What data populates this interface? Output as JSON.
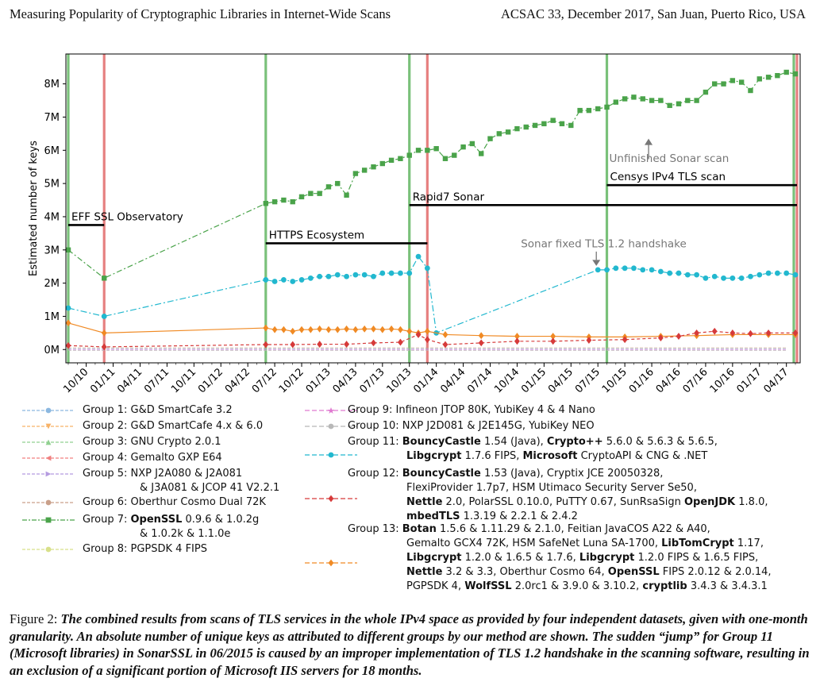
{
  "header": {
    "left": "Measuring Popularity of Cryptographic Libraries in Internet-Wide Scans",
    "right": "ACSAC 33, December 2017, San Juan, Puerto Rico, USA"
  },
  "chart_data": {
    "type": "line",
    "ylabel": "Estimated number of keys",
    "xlabel": "",
    "yticks": [
      "0M",
      "1M",
      "2M",
      "3M",
      "4M",
      "5M",
      "6M",
      "7M",
      "8M"
    ],
    "ylim": [
      -0.4,
      8.9
    ],
    "xticks": [
      "10/10",
      "01/11",
      "04/11",
      "07/11",
      "10/11",
      "01/12",
      "04/12",
      "07/12",
      "10/12",
      "01/13",
      "04/13",
      "07/13",
      "10/13",
      "01/14",
      "04/14",
      "07/14",
      "10/14",
      "01/15",
      "04/15",
      "07/15",
      "10/15",
      "01/16",
      "04/16",
      "07/16",
      "10/16",
      "01/17",
      "04/17"
    ],
    "grid": false,
    "vertical_lines": [
      {
        "x": "2010-08",
        "color": "#59b159"
      },
      {
        "x": "2010-12",
        "color": "#e06060"
      },
      {
        "x": "2012-06",
        "color": "#59b159"
      },
      {
        "x": "2013-10",
        "color": "#59b159"
      },
      {
        "x": "2013-12",
        "color": "#e06060"
      },
      {
        "x": "2015-08",
        "color": "#59b159"
      },
      {
        "x": "2017-05",
        "color": "#59b159"
      },
      {
        "x": "2017-05",
        "color": "#e06060"
      }
    ],
    "datasets": [
      {
        "label": "EFF SSL Observatory",
        "from": "2010-08",
        "to": "2010-12",
        "y": 3.75
      },
      {
        "label": "HTTPS Ecosystem",
        "from": "2012-06",
        "to": "2013-12",
        "y": 3.2
      },
      {
        "label": "Rapid7 Sonar",
        "from": "2013-10",
        "to": "2017-05",
        "y": 4.35
      },
      {
        "label": "Censys IPv4 TLS scan",
        "from": "2015-08",
        "to": "2017-05",
        "y": 4.95
      }
    ],
    "annotations": [
      {
        "text": "Unfinished Sonar scan",
        "x": "2016-01",
        "y": 6.4
      },
      {
        "text": "Sonar fixed TLS 1.2 handshake",
        "x": "2015-07",
        "y": 2.45
      }
    ],
    "series": [
      {
        "name": "Group 7",
        "color": "#4aa34a",
        "marker": "square",
        "x": [
          "2010-08",
          "2010-12",
          "2012-06",
          "2012-07",
          "2012-08",
          "2012-09",
          "2012-10",
          "2012-11",
          "2012-12",
          "2013-01",
          "2013-02",
          "2013-03",
          "2013-04",
          "2013-05",
          "2013-06",
          "2013-07",
          "2013-08",
          "2013-09",
          "2013-10",
          "2013-11",
          "2013-12",
          "2014-01",
          "2014-02",
          "2014-03",
          "2014-04",
          "2014-05",
          "2014-06",
          "2014-07",
          "2014-08",
          "2014-09",
          "2014-10",
          "2014-11",
          "2014-12",
          "2015-01",
          "2015-02",
          "2015-03",
          "2015-04",
          "2015-05",
          "2015-06",
          "2015-07",
          "2015-08",
          "2015-09",
          "2015-10",
          "2015-11",
          "2015-12",
          "2016-01",
          "2016-02",
          "2016-03",
          "2016-04",
          "2016-05",
          "2016-06",
          "2016-07",
          "2016-08",
          "2016-09",
          "2016-10",
          "2016-11",
          "2016-12",
          "2017-01",
          "2017-02",
          "2017-03",
          "2017-04",
          "2017-05"
        ],
        "values": [
          3.0,
          2.15,
          4.4,
          4.45,
          4.5,
          4.45,
          4.6,
          4.7,
          4.7,
          4.9,
          5.0,
          4.65,
          5.3,
          5.4,
          5.5,
          5.6,
          5.7,
          5.75,
          5.85,
          6.0,
          6.0,
          6.05,
          5.75,
          5.85,
          6.1,
          6.2,
          5.9,
          6.35,
          6.5,
          6.55,
          6.65,
          6.7,
          6.75,
          6.8,
          6.9,
          6.8,
          6.75,
          7.2,
          7.2,
          7.25,
          7.3,
          7.45,
          7.55,
          7.6,
          7.55,
          7.5,
          7.5,
          7.35,
          7.4,
          7.5,
          7.5,
          7.75,
          8.0,
          8.0,
          8.1,
          8.05,
          7.8,
          8.15,
          8.2,
          8.25,
          8.35,
          8.3
        ]
      },
      {
        "name": "Group 11",
        "color": "#22b8cf",
        "marker": "circle",
        "x": [
          "2010-08",
          "2010-12",
          "2012-06",
          "2012-07",
          "2012-08",
          "2012-09",
          "2012-10",
          "2012-11",
          "2012-12",
          "2013-01",
          "2013-02",
          "2013-03",
          "2013-04",
          "2013-05",
          "2013-06",
          "2013-07",
          "2013-08",
          "2013-09",
          "2013-10",
          "2013-11",
          "2013-12",
          "2014-01",
          "2015-07",
          "2015-08",
          "2015-09",
          "2015-10",
          "2015-11",
          "2015-12",
          "2016-01",
          "2016-02",
          "2016-03",
          "2016-04",
          "2016-05",
          "2016-06",
          "2016-07",
          "2016-08",
          "2016-09",
          "2016-10",
          "2016-11",
          "2016-12",
          "2017-01",
          "2017-02",
          "2017-03",
          "2017-04",
          "2017-05"
        ],
        "values": [
          1.25,
          1.0,
          2.1,
          2.05,
          2.1,
          2.05,
          2.1,
          2.15,
          2.2,
          2.2,
          2.25,
          2.2,
          2.25,
          2.25,
          2.2,
          2.3,
          2.3,
          2.3,
          2.3,
          2.8,
          2.45,
          0.5,
          2.4,
          2.4,
          2.45,
          2.45,
          2.45,
          2.4,
          2.4,
          2.35,
          2.3,
          2.3,
          2.25,
          2.25,
          2.15,
          2.2,
          2.15,
          2.15,
          2.15,
          2.2,
          2.25,
          2.3,
          2.3,
          2.3,
          2.25
        ]
      },
      {
        "name": "Group 13",
        "color": "#f08a24",
        "marker": "diamond",
        "x": [
          "2010-08",
          "2010-12",
          "2012-06",
          "2012-07",
          "2012-08",
          "2012-09",
          "2012-10",
          "2012-11",
          "2012-12",
          "2013-01",
          "2013-02",
          "2013-03",
          "2013-04",
          "2013-05",
          "2013-06",
          "2013-07",
          "2013-08",
          "2013-09",
          "2013-10",
          "2013-11",
          "2013-12",
          "2014-02",
          "2014-06",
          "2014-10",
          "2015-02",
          "2015-06",
          "2015-10",
          "2016-02",
          "2016-06",
          "2016-10",
          "2017-02",
          "2017-05"
        ],
        "values": [
          0.8,
          0.5,
          0.65,
          0.6,
          0.6,
          0.55,
          0.6,
          0.6,
          0.62,
          0.6,
          0.6,
          0.62,
          0.6,
          0.62,
          0.62,
          0.6,
          0.62,
          0.6,
          0.55,
          0.5,
          0.55,
          0.45,
          0.42,
          0.4,
          0.4,
          0.38,
          0.38,
          0.4,
          0.42,
          0.45,
          0.45,
          0.45
        ]
      },
      {
        "name": "Group 12",
        "color": "#d63a3a",
        "marker": "diamond",
        "x": [
          "2010-08",
          "2010-12",
          "2012-06",
          "2012-09",
          "2012-12",
          "2013-03",
          "2013-06",
          "2013-09",
          "2013-11",
          "2013-12",
          "2014-02",
          "2014-06",
          "2014-10",
          "2015-02",
          "2015-06",
          "2015-10",
          "2016-02",
          "2016-04",
          "2016-06",
          "2016-08",
          "2016-10",
          "2016-12",
          "2017-02",
          "2017-05"
        ],
        "values": [
          0.12,
          0.08,
          0.15,
          0.15,
          0.16,
          0.16,
          0.2,
          0.22,
          0.45,
          0.3,
          0.15,
          0.2,
          0.25,
          0.25,
          0.28,
          0.3,
          0.35,
          0.4,
          0.5,
          0.55,
          0.5,
          0.48,
          0.5,
          0.5
        ]
      }
    ]
  },
  "legend": {
    "left": [
      {
        "prefix": "Group  1:",
        "parts": [
          {
            "t": "G&D SmartCafe 3.2",
            "b": false
          }
        ],
        "color": "#8cb8e0",
        "marker": "circle",
        "dash": "4,2"
      },
      {
        "prefix": "Group  2:",
        "parts": [
          {
            "t": "G&D SmartCafe 4.x & 6.0",
            "b": false
          }
        ],
        "color": "#f7b267",
        "marker": "tri-down",
        "dash": "4,2"
      },
      {
        "prefix": "Group  3:",
        "parts": [
          {
            "t": "GNU Crypto 2.0.1",
            "b": false
          }
        ],
        "color": "#90d090",
        "marker": "tri-up",
        "dash": "4,2"
      },
      {
        "prefix": "Group  4:",
        "parts": [
          {
            "t": "Gemalto GXP E64",
            "b": false
          }
        ],
        "color": "#f08080",
        "marker": "tri-left",
        "dash": "4,2"
      },
      {
        "prefix": "Group  5:",
        "parts": [
          {
            "t": "NXP J2A080 & J2A081",
            "b": false
          }
        ],
        "line2": "& J3A081 & JCOP 41 V2.2.1",
        "color": "#b59be0",
        "marker": "tri-right",
        "dash": "4,2"
      },
      {
        "prefix": "Group  6:",
        "parts": [
          {
            "t": "Oberthur Cosmo Dual 72K",
            "b": false
          }
        ],
        "color": "#c9a08a",
        "marker": "circle",
        "dash": "4,2"
      },
      {
        "prefix": "Group  7:",
        "parts": [
          {
            "t": "OpenSSL",
            "b": true
          },
          {
            "t": " 0.9.6 & 1.0.2g",
            "b": false
          }
        ],
        "line2": "& 1.0.2k & 1.1.0e",
        "color": "#4aa34a",
        "marker": "square",
        "dash": "6,2,2,2"
      },
      {
        "prefix": "Group  8:",
        "parts": [
          {
            "t": "PGPSDK 4 FIPS",
            "b": false
          }
        ],
        "color": "#d8e08a",
        "marker": "circle",
        "dash": "4,2"
      }
    ],
    "right": [
      {
        "prefix": "Group  9:",
        "lines": [
          [
            {
              "t": "Infineon JTOP 80K, YubiKey 4 & 4 Nano",
              "b": false
            }
          ]
        ],
        "color": "#e07ad0",
        "marker": "star"
      },
      {
        "prefix": "Group 10:",
        "lines": [
          [
            {
              "t": "NXP J2D081 & J2E145G, YubiKey NEO",
              "b": false
            }
          ]
        ],
        "color": "#b8b8b8",
        "marker": "circle"
      },
      {
        "prefix": "Group 11:",
        "lines": [
          [
            {
              "t": "BouncyCastle",
              "b": true
            },
            {
              "t": " 1.54 (Java), ",
              "b": false
            },
            {
              "t": "Crypto++",
              "b": true
            },
            {
              "t": " 5.6.0 & 5.6.3 & 5.6.5,",
              "b": false
            }
          ],
          [
            {
              "t": "Libgcrypt",
              "b": true
            },
            {
              "t": " 1.7.6 FIPS, ",
              "b": false
            },
            {
              "t": "Microsoft",
              "b": true
            },
            {
              "t": " CryptoAPI & CNG & .NET",
              "b": false
            }
          ]
        ],
        "color": "#22b8cf",
        "marker": "circle"
      },
      {
        "prefix": "Group 12:",
        "lines": [
          [
            {
              "t": "BouncyCastle",
              "b": true
            },
            {
              "t": " 1.53 (Java), Cryptix JCE 20050328,",
              "b": false
            }
          ],
          [
            {
              "t": "FlexiProvider 1.7p7, HSM Utimaco Security Server Se50,",
              "b": false
            }
          ],
          [
            {
              "t": "Nettle",
              "b": true
            },
            {
              "t": " 2.0, PolarSSL 0.10.0, PuTTY 0.67, SunRsaSign ",
              "b": false
            },
            {
              "t": "OpenJDK",
              "b": true
            },
            {
              "t": " 1.8.0,",
              "b": false
            }
          ],
          [
            {
              "t": "mbedTLS",
              "b": true
            },
            {
              "t": " 1.3.19 & 2.2.1 & 2.4.2",
              "b": false
            }
          ]
        ],
        "color": "#d63a3a",
        "marker": "diamond"
      },
      {
        "prefix": "Group 13:",
        "lines": [
          [
            {
              "t": "Botan",
              "b": true
            },
            {
              "t": " 1.5.6 & 1.11.29 & 2.1.0, Feitian JavaCOS A22 & A40,",
              "b": false
            }
          ],
          [
            {
              "t": "Gemalto GCX4 72K, HSM SafeNet Luna SA-1700, ",
              "b": false
            },
            {
              "t": "LibTomCrypt",
              "b": true
            },
            {
              "t": " 1.17,",
              "b": false
            }
          ],
          [
            {
              "t": "Libgcrypt",
              "b": true
            },
            {
              "t": " 1.2.0 & 1.6.5 & 1.7.6, ",
              "b": false
            },
            {
              "t": "Libgcrypt",
              "b": true
            },
            {
              "t": " 1.2.0 FIPS & 1.6.5 FIPS,",
              "b": false
            }
          ],
          [
            {
              "t": "Nettle",
              "b": true
            },
            {
              "t": " 3.2 & 3.3, Oberthur Cosmo 64, ",
              "b": false
            },
            {
              "t": "OpenSSL",
              "b": true
            },
            {
              "t": " FIPS 2.0.12 & 2.0.14,",
              "b": false
            }
          ],
          [
            {
              "t": "PGPSDK 4, ",
              "b": false
            },
            {
              "t": "WolfSSL",
              "b": true
            },
            {
              "t": " 2.0rc1 & 3.9.0 & 3.10.2, ",
              "b": false
            },
            {
              "t": "cryptlib",
              "b": true
            },
            {
              "t": " 3.4.3 & 3.4.3.1",
              "b": false
            }
          ]
        ],
        "color": "#f08a24",
        "marker": "diamond"
      }
    ]
  },
  "caption": {
    "lead": "Figure 2: ",
    "body": "The combined results from scans of TLS services in the whole IPv4 space as provided by four independent datasets, given with one-month granularity. An absolute number of unique keys as attributed to different groups by our method are shown. The sudden “jump” for Group 11 (Microsoft libraries) in SonarSSL in 06/2015 is caused by an improper implementation of TLS 1.2 handshake in the scanning software, resulting in an exclusion of a significant portion of Microsoft IIS servers for 18 months."
  }
}
